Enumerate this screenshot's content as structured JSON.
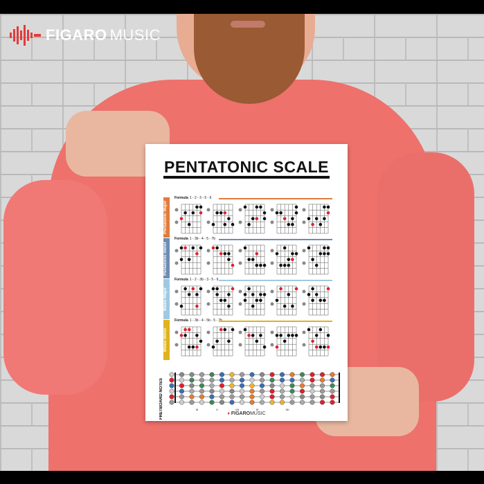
{
  "brand": {
    "name_bold": "FIGARO",
    "name_light": "MUSIC",
    "accent": "#e23b3b"
  },
  "poster": {
    "title": "PENTATONIC SCALE",
    "formula_label": "Formula",
    "sections": [
      {
        "label": "Pentatonic Major",
        "formula": "1 - 2 - 3 - 5 - 6",
        "color": "#e07b3c"
      },
      {
        "label": "Pentatonic minor",
        "formula": "1 - 3b - 4 - 5 - 7b",
        "color": "#6b8db3"
      },
      {
        "label": "Blues Major",
        "formula": "1 - 2 - 3b - 3 - 5 - 6",
        "color": "#9fc9e2"
      },
      {
        "label": "Blues minor",
        "formula": "1 - 3b - 4 - 5b - 5 - 7b",
        "color": "#e0b21c"
      }
    ],
    "fretboard": {
      "label": "FRETBOARD NOTES",
      "markers": [
        "III",
        "V",
        "VII",
        "IX",
        "XII"
      ]
    },
    "footer": {
      "name_bold": "FIGARO",
      "name_light": "MUSIC"
    }
  }
}
